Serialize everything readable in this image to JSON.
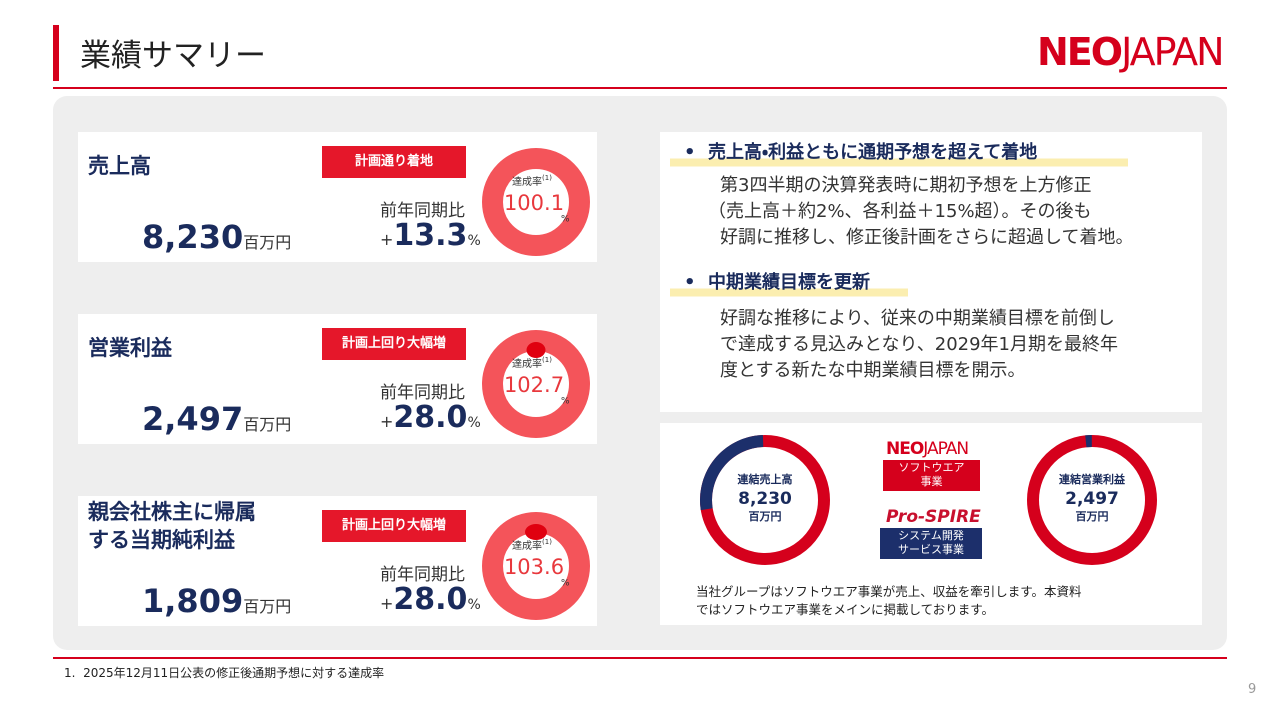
{
  "header": {
    "title": "業績サマリー",
    "logo_neo": "NEO",
    "logo_japan": "JAPAN"
  },
  "cards": [
    {
      "label_lines": [
        "売上高"
      ],
      "badge": "計画通り着地",
      "value": "8,230",
      "unit": "百万円",
      "yoy_label": "前年同期比",
      "yoy_sign": "+",
      "yoy": "13.3",
      "yoy_unit": "%",
      "rate_label": "達成率",
      "rate_note": "(1)",
      "rate": "100.1",
      "rate_unit": "%"
    },
    {
      "label_lines": [
        "営業利益"
      ],
      "badge": "計画上回り大幅増",
      "value": "2,497",
      "unit": "百万円",
      "yoy_label": "前年同期比",
      "yoy_sign": "+",
      "yoy": "28.0",
      "yoy_unit": "%",
      "rate_label": "達成率",
      "rate_note": "(1)",
      "rate": "102.7",
      "rate_unit": "%"
    },
    {
      "label_lines": [
        "親会社株主に帰属",
        "する当期純利益"
      ],
      "badge": "計画上回り大幅増",
      "value": "1,809",
      "unit": "百万円",
      "yoy_label": "前年同期比",
      "yoy_sign": "+",
      "yoy": "28.0",
      "yoy_unit": "%",
      "rate_label": "達成率",
      "rate_note": "(1)",
      "rate": "103.6",
      "rate_unit": "%"
    }
  ],
  "highlights": [
    {
      "heading": "売上高・利益ともに通期予想を超えて着地",
      "lines": [
        "第3四半期の決算発表時に期初予想を上方修正",
        "（売上高＋約2%、各利益＋15%超）。その後も",
        "好調に推移し、修正後計画をさらに超過して着地。"
      ]
    },
    {
      "heading": "中期業績目標を更新",
      "lines": [
        "好調な推移により、従来の中期業績目標を前倒し",
        "で達成する見込みとなり、2029年1月期を最終年",
        "度とする新たな中期業績目標を開示。"
      ]
    }
  ],
  "segments": {
    "left": [
      "連結売上高",
      "8,230",
      "百万円"
    ],
    "right": [
      "連結営業利益",
      "2,497",
      "百万円"
    ],
    "software": {
      "logo_neo": "NEO",
      "logo_japan": "JAPAN",
      "label_lines": [
        "ソフトウエア",
        "事業"
      ]
    },
    "service": {
      "logo": "Pro-SPIRE",
      "label_lines": [
        "システム開発",
        "サービス事業"
      ]
    },
    "note_lines": [
      "当社グループはソフトウエア事業が売上、収益を牽引します。本資料",
      "ではソフトウエア事業をメインに掲載しております。"
    ]
  },
  "footnote": {
    "number": "1.",
    "text": "2025年12月11日公表の修正後通期予想に対する達成率"
  },
  "page_number": "9"
}
